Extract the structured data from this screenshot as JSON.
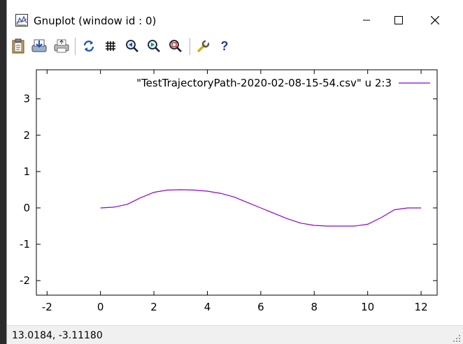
{
  "window": {
    "title": "Gnuplot (window id : 0)"
  },
  "toolbar": {
    "buttons": [
      {
        "name": "copy-clipboard",
        "icon": "clipboard-icon"
      },
      {
        "name": "print",
        "icon": "save-icon"
      },
      {
        "name": "print-image",
        "icon": "printer-icon"
      },
      {
        "name": "replot",
        "icon": "refresh-icon"
      },
      {
        "name": "grid",
        "icon": "grid-icon"
      },
      {
        "name": "previous-zoom",
        "icon": "zoom-prev-icon"
      },
      {
        "name": "next-zoom",
        "icon": "zoom-next-icon"
      },
      {
        "name": "autoscale",
        "icon": "zoom-autoscale-icon"
      },
      {
        "name": "options",
        "icon": "wrench-icon"
      },
      {
        "name": "help",
        "icon": "help-icon"
      }
    ]
  },
  "colors": {
    "series": "#9400d3",
    "axis": "#000000"
  },
  "chart_data": {
    "type": "line",
    "title": "",
    "xlabel": "",
    "ylabel": "",
    "xlim": [
      -2.4,
      12.6
    ],
    "ylim": [
      -2.4,
      3.8
    ],
    "xticks": [
      -2,
      0,
      2,
      4,
      6,
      8,
      10,
      12
    ],
    "yticks": [
      -2,
      -1,
      0,
      1,
      2,
      3
    ],
    "grid": false,
    "legend_position": "top-right",
    "series": [
      {
        "name": "\"TestTrajectoryPath-2020-02-08-15-54.csv\" u 2:3",
        "x": [
          0,
          0.5,
          1.0,
          1.5,
          2.0,
          2.5,
          3.0,
          3.5,
          4.0,
          4.5,
          5.0,
          5.5,
          6.0,
          6.5,
          7.0,
          7.5,
          8.0,
          8.5,
          9.0,
          9.5,
          10.0,
          10.5,
          11.0,
          11.5,
          12.0
        ],
        "y": [
          0.0,
          0.02,
          0.1,
          0.28,
          0.43,
          0.49,
          0.5,
          0.49,
          0.46,
          0.4,
          0.3,
          0.15,
          0.0,
          -0.15,
          -0.3,
          -0.42,
          -0.48,
          -0.5,
          -0.5,
          -0.5,
          -0.45,
          -0.27,
          -0.05,
          0.0,
          0.0
        ]
      }
    ]
  },
  "status": {
    "coordinates": "13.0184, -3.11180"
  }
}
